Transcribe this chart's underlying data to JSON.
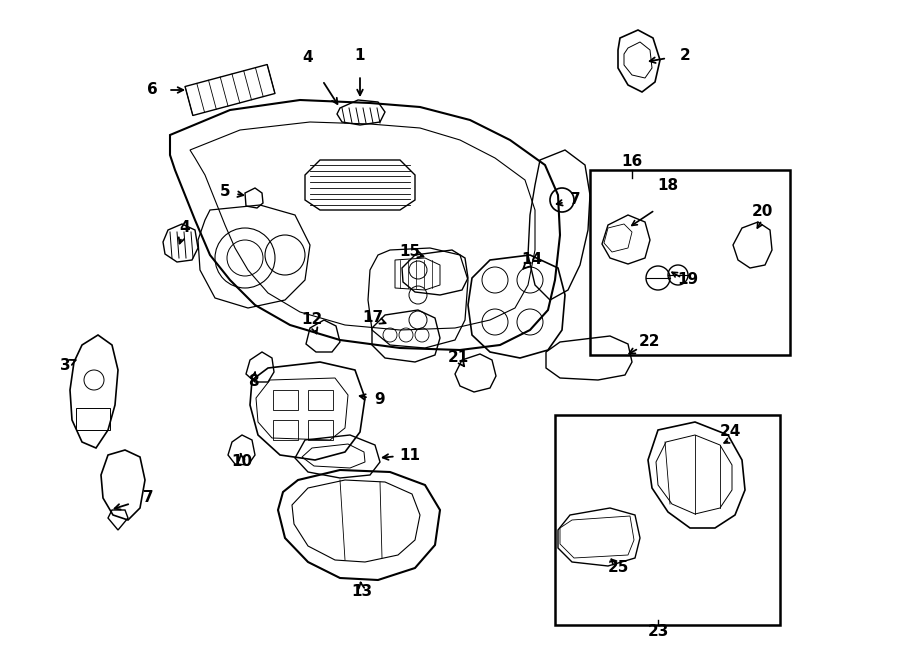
{
  "bg_color": "#ffffff",
  "line_color": "#000000",
  "lw": 1.2,
  "fs": 11
}
